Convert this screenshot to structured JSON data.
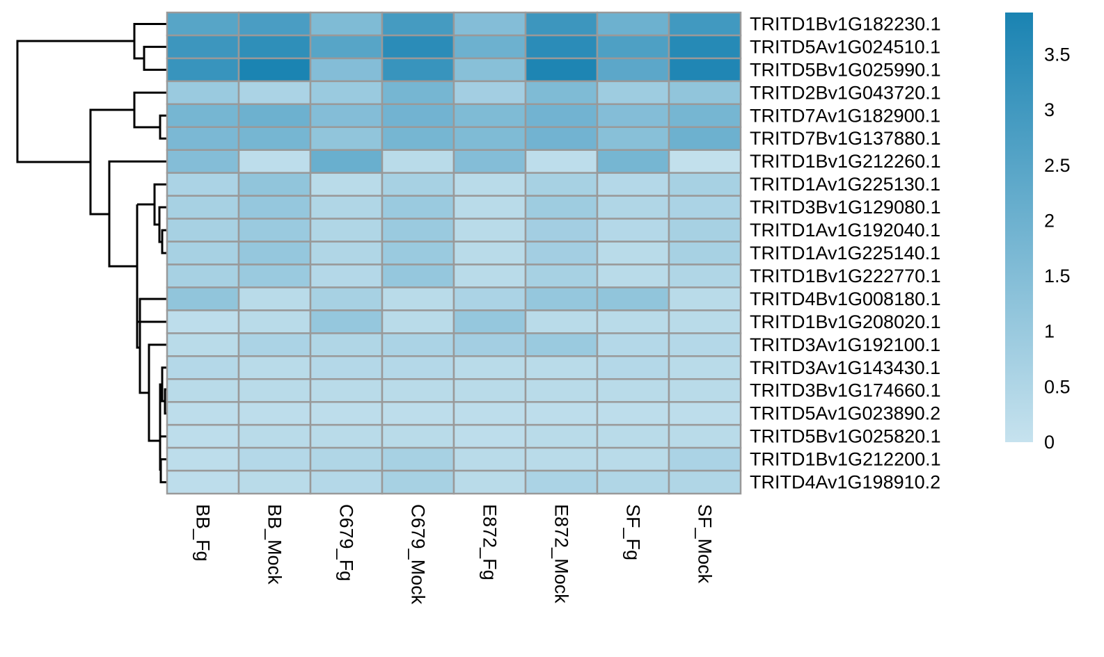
{
  "chart_data": {
    "type": "heatmap",
    "row_labels": [
      "TRITD1Bv1G182230.1",
      "TRITD5Av1G024510.1",
      "TRITD5Bv1G025990.1",
      "TRITD2Bv1G043720.1",
      "TRITD7Av1G182900.1",
      "TRITD7Bv1G137880.1",
      "TRITD1Bv1G212260.1",
      "TRITD1Av1G225130.1",
      "TRITD3Bv1G129080.1",
      "TRITD1Av1G192040.1",
      "TRITD1Av1G225140.1",
      "TRITD1Bv1G222770.1",
      "TRITD4Bv1G008180.1",
      "TRITD1Bv1G208020.1",
      "TRITD3Av1G192100.1",
      "TRITD3Av1G143430.1",
      "TRITD3Bv1G174660.1",
      "TRITD5Av1G023890.2",
      "TRITD5Bv1G025820.1",
      "TRITD1Bv1G212200.1",
      "TRITD4Av1G198910.2"
    ],
    "col_labels": [
      "BB_Fg",
      "BB_Mock",
      "C679_Fg",
      "C679_Mock",
      "E872_Fg",
      "E872_Mock",
      "SF_Fg",
      "SF_Mock"
    ],
    "values": [
      [
        2.5,
        2.8,
        1.6,
        2.9,
        1.5,
        3.1,
        2.0,
        3.0
      ],
      [
        3.1,
        3.4,
        2.5,
        3.5,
        2.0,
        3.5,
        2.7,
        3.6
      ],
      [
        3.2,
        3.85,
        1.5,
        3.2,
        1.4,
        3.8,
        2.4,
        3.75
      ],
      [
        1.0,
        0.6,
        1.0,
        1.8,
        0.8,
        1.6,
        0.9,
        1.2
      ],
      [
        1.8,
        2.0,
        1.5,
        1.9,
        1.6,
        1.9,
        1.5,
        1.8
      ],
      [
        1.7,
        1.8,
        1.2,
        1.8,
        1.6,
        1.9,
        1.4,
        2.0
      ],
      [
        1.5,
        0.2,
        2.1,
        0.3,
        1.5,
        0.2,
        1.8,
        0.1
      ],
      [
        0.6,
        1.2,
        0.3,
        0.7,
        0.3,
        0.7,
        0.4,
        0.7
      ],
      [
        0.7,
        1.1,
        0.5,
        1.0,
        0.3,
        0.9,
        0.5,
        0.6
      ],
      [
        0.7,
        1.0,
        0.5,
        1.0,
        0.3,
        0.8,
        0.4,
        0.7
      ],
      [
        0.7,
        1.1,
        0.5,
        1.0,
        0.3,
        0.8,
        0.3,
        0.7
      ],
      [
        0.7,
        1.0,
        0.4,
        1.1,
        0.3,
        0.7,
        0.3,
        0.5
      ],
      [
        1.2,
        0.3,
        0.7,
        0.3,
        0.6,
        1.1,
        1.2,
        0.3
      ],
      [
        0.2,
        0.3,
        1.1,
        0.3,
        1.1,
        0.3,
        0.3,
        0.3
      ],
      [
        0.3,
        0.6,
        0.5,
        0.6,
        0.8,
        1.0,
        0.4,
        0.4
      ],
      [
        0.4,
        0.3,
        0.4,
        0.4,
        0.3,
        0.3,
        0.4,
        0.3
      ],
      [
        0.3,
        0.3,
        0.3,
        0.3,
        0.3,
        0.3,
        0.3,
        0.3
      ],
      [
        0.2,
        0.2,
        0.2,
        0.2,
        0.2,
        0.2,
        0.2,
        0.2
      ],
      [
        0.2,
        0.3,
        0.3,
        0.3,
        0.2,
        0.3,
        0.3,
        0.3
      ],
      [
        0.2,
        0.4,
        0.5,
        0.7,
        0.3,
        0.3,
        0.3,
        0.6
      ],
      [
        0.2,
        0.3,
        0.4,
        0.7,
        0.3,
        0.6,
        0.5,
        0.5
      ]
    ],
    "zlim": [
      0,
      3.88
    ],
    "zticks": [
      0,
      0.5,
      1,
      1.5,
      2,
      2.5,
      3,
      3.5
    ],
    "color_low": "#c6e2ee",
    "color_high": "#1a83b2",
    "border_color": "#999999"
  }
}
